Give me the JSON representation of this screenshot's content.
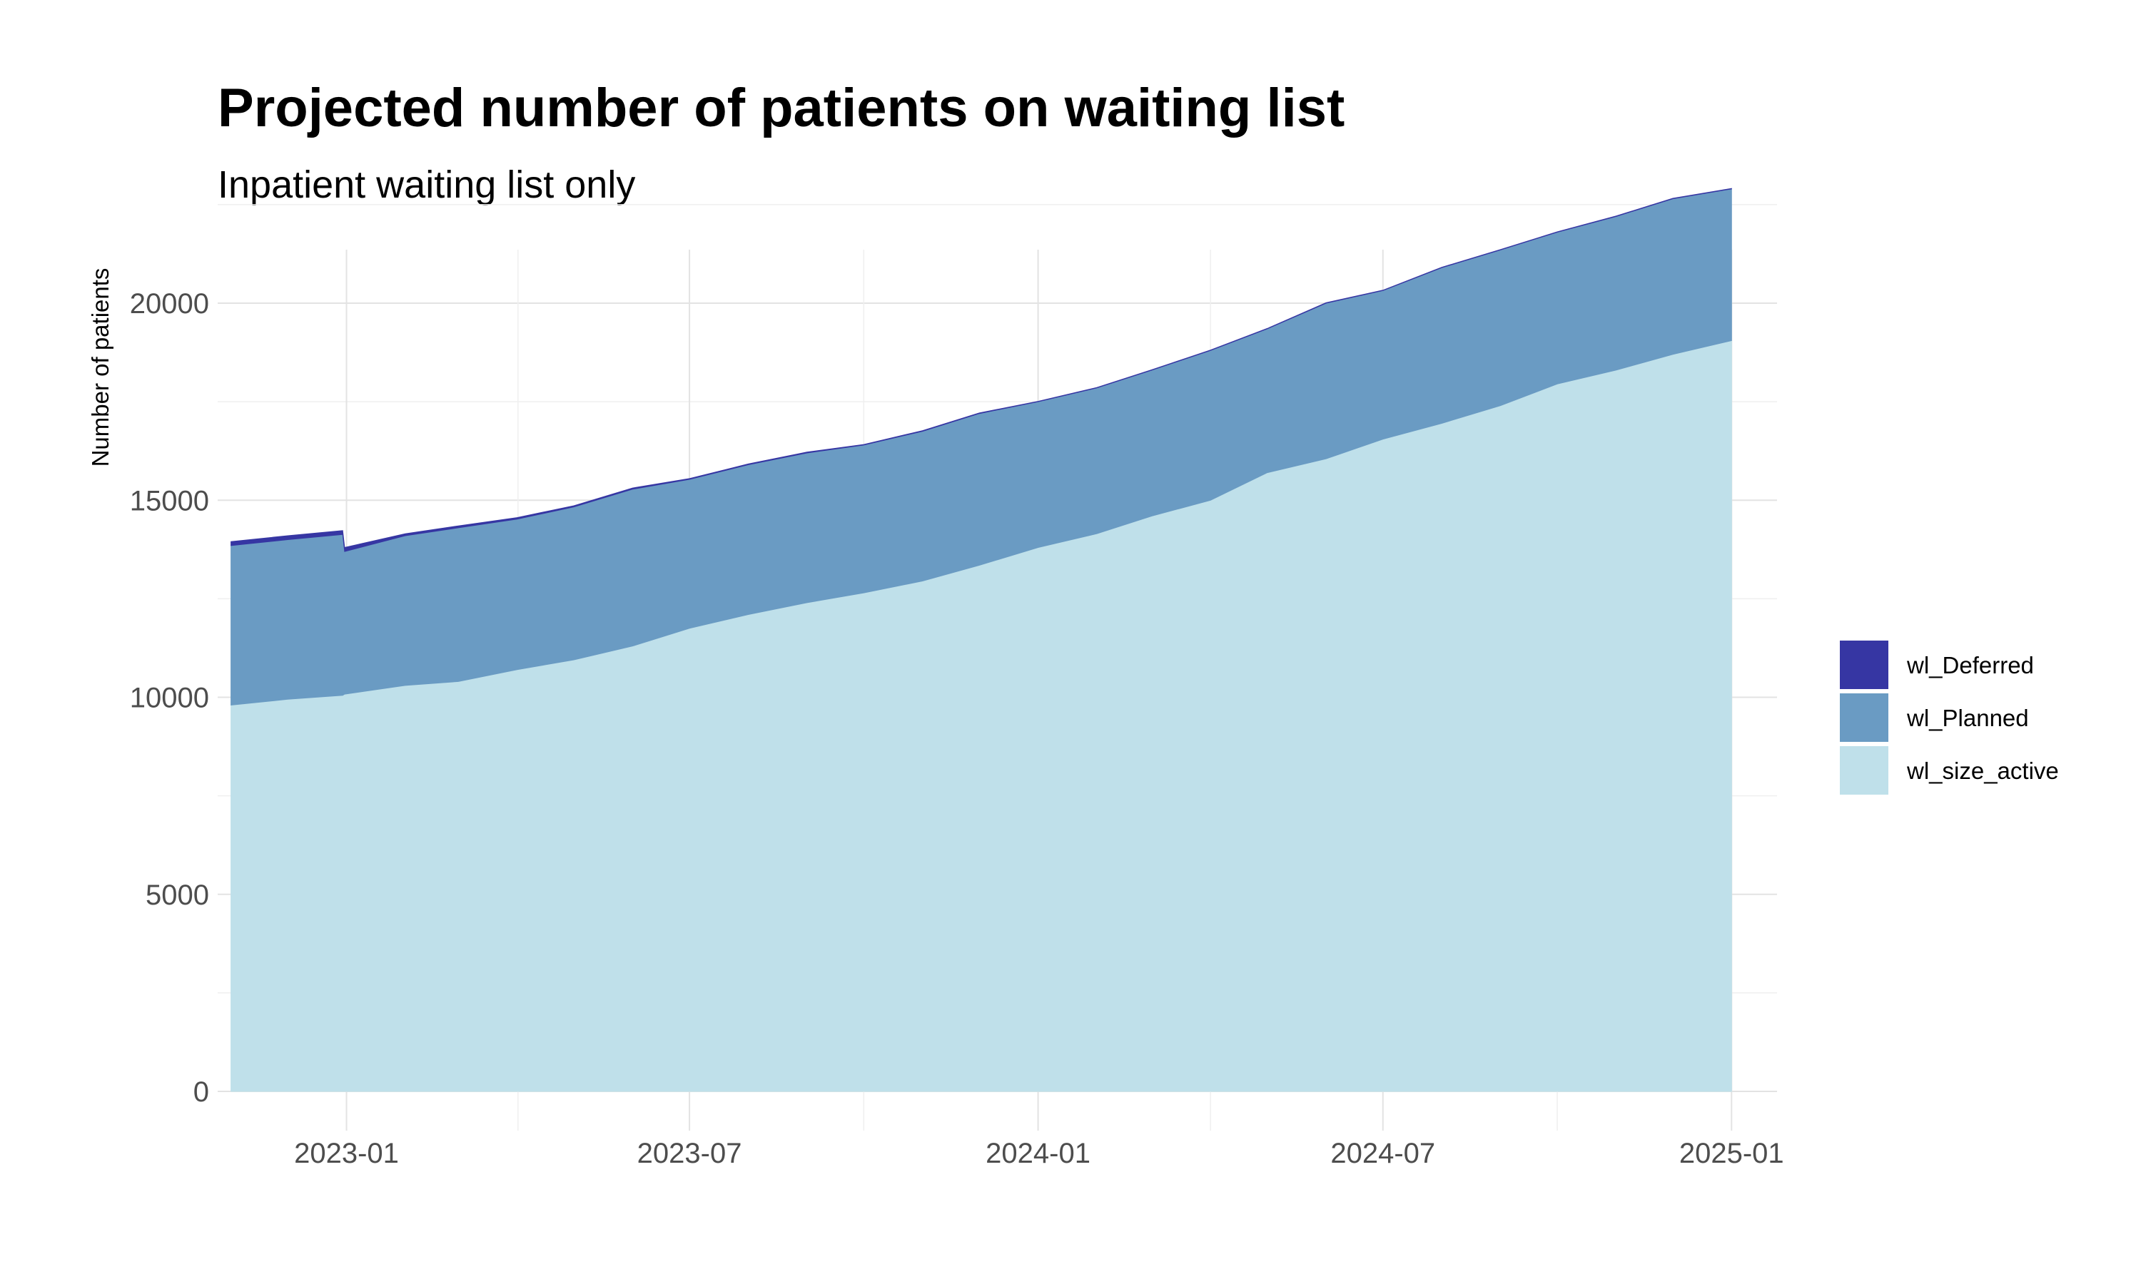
{
  "chart_data": {
    "type": "area",
    "stacked": true,
    "title": "Projected number of patients on waiting list",
    "subtitle": "Inpatient waiting list only",
    "xlabel": "",
    "ylabel": "Number of patients",
    "x_type": "date",
    "xlim": [
      "2022-10-25",
      "2025-01-25"
    ],
    "ylim": [
      0,
      23500
    ],
    "x_ticks": [
      "2023-01-01",
      "2023-07-01",
      "2024-01-01",
      "2024-07-01",
      "2025-01-01"
    ],
    "x_tick_labels": [
      "2023-01",
      "2023-07",
      "2024-01",
      "2024-07",
      "2025-01"
    ],
    "y_ticks": [
      0,
      5000,
      10000,
      15000,
      20000
    ],
    "y_tick_labels": [
      "0",
      "5000",
      "10000",
      "15000",
      "20000"
    ],
    "grid": true,
    "legend_position": "right",
    "x": [
      "2022-11-01",
      "2022-12-01",
      "2022-12-30",
      "2022-12-31",
      "2023-02-01",
      "2023-03-01",
      "2023-04-01",
      "2023-05-01",
      "2023-06-01",
      "2023-07-01",
      "2023-08-01",
      "2023-09-01",
      "2023-10-01",
      "2023-11-01",
      "2023-12-01",
      "2024-01-01",
      "2024-02-01",
      "2024-03-01",
      "2024-04-01",
      "2024-05-01",
      "2024-06-01",
      "2024-07-01",
      "2024-08-01",
      "2024-09-01",
      "2024-10-01",
      "2024-11-01",
      "2024-12-01",
      "2025-01-01"
    ],
    "series": [
      {
        "name": "wl_size_active",
        "color": "#bfe0ea",
        "values": [
          9800,
          9950,
          10050,
          10080,
          10300,
          10400,
          10700,
          10950,
          11300,
          11750,
          12100,
          12400,
          12650,
          12950,
          13350,
          13800,
          14150,
          14600,
          15000,
          15700,
          16050,
          16550,
          16950,
          17400,
          17950,
          18300,
          18700,
          19050
        ]
      },
      {
        "name": "wl_Planned",
        "color": "#6a9bc3",
        "values": [
          4050,
          4050,
          4080,
          3620,
          3800,
          3900,
          3820,
          3880,
          3980,
          3780,
          3800,
          3800,
          3750,
          3800,
          3850,
          3700,
          3700,
          3700,
          3800,
          3650,
          3950,
          3770,
          3950,
          3950,
          3850,
          3900,
          3950,
          3850
        ]
      },
      {
        "name": "wl_Deferred",
        "color": "#3636a3",
        "values": [
          100,
          100,
          100,
          100,
          50,
          50,
          40,
          30,
          30,
          20,
          20,
          20,
          15,
          15,
          15,
          10,
          10,
          10,
          10,
          10,
          10,
          10,
          10,
          10,
          10,
          10,
          10,
          10
        ]
      }
    ]
  }
}
